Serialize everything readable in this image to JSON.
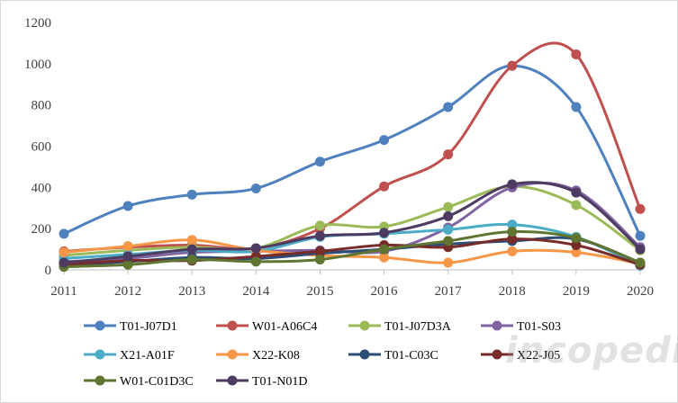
{
  "chart_data": {
    "type": "line",
    "title": "",
    "xlabel": "",
    "ylabel": "",
    "x": [
      "2011",
      "2012",
      "2013",
      "2014",
      "2015",
      "2016",
      "2017",
      "2018",
      "2019",
      "2020"
    ],
    "ylim": [
      0,
      1200
    ],
    "yticks": [
      0,
      200,
      400,
      600,
      800,
      1000,
      1200
    ],
    "grid": false,
    "smooth": true,
    "legend_position": "bottom",
    "series": [
      {
        "name": "T01-J07D1",
        "color": "#4e81bd",
        "values": [
          175,
          310,
          365,
          395,
          525,
          630,
          790,
          990,
          790,
          165
        ]
      },
      {
        "name": "W01-A06C4",
        "color": "#c0504d",
        "values": [
          90,
          110,
          120,
          105,
          200,
          405,
          560,
          990,
          1045,
          295
        ]
      },
      {
        "name": "T01-J07D3A",
        "color": "#9bbb59",
        "values": [
          70,
          95,
          110,
          105,
          215,
          210,
          305,
          405,
          315,
          95
        ]
      },
      {
        "name": "T01-S03",
        "color": "#8064a2",
        "values": [
          40,
          55,
          85,
          90,
          95,
          90,
          205,
          400,
          385,
          110
        ]
      },
      {
        "name": "X21-A01F",
        "color": "#4bacc6",
        "values": [
          55,
          75,
          95,
          90,
          160,
          175,
          195,
          220,
          160,
          20
        ]
      },
      {
        "name": "X22-K08",
        "color": "#f79646",
        "values": [
          85,
          115,
          145,
          95,
          70,
          60,
          35,
          90,
          85,
          30
        ]
      },
      {
        "name": "T01-C03C",
        "color": "#2c4d75",
        "values": [
          20,
          40,
          60,
          55,
          80,
          100,
          125,
          140,
          150,
          35
        ]
      },
      {
        "name": "X22-J05",
        "color": "#772c2a",
        "values": [
          25,
          45,
          45,
          65,
          90,
          120,
          110,
          150,
          120,
          25
        ]
      },
      {
        "name": "W01-C01D3C",
        "color": "#5f7530",
        "values": [
          15,
          25,
          50,
          40,
          50,
          100,
          140,
          185,
          155,
          35
        ]
      },
      {
        "name": "T01-N01D",
        "color": "#4d3b62",
        "values": [
          35,
          65,
          100,
          105,
          165,
          180,
          260,
          415,
          375,
          100
        ]
      }
    ]
  },
  "watermark": "incopedia"
}
